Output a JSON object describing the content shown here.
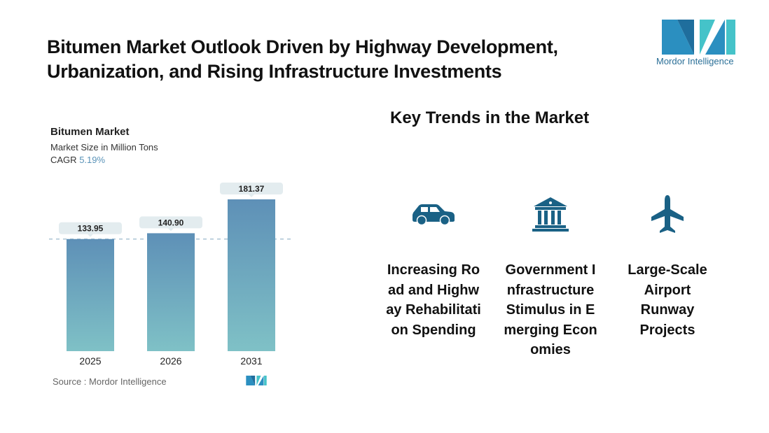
{
  "header": {
    "title_line1": "Bitumen Market Outlook Driven by Highway Development,",
    "title_line2": "Urbanization, and Rising Infrastructure Investments",
    "logo_text": "Mordor Intelligence"
  },
  "chart_data": {
    "type": "bar",
    "title": "Bitumen Market",
    "subtitle": "Market Size in Million Tons",
    "cagr_label": "CAGR",
    "cagr_value": "5.19%",
    "categories": [
      "2025",
      "2026",
      "2031"
    ],
    "values": [
      133.95,
      140.9,
      181.37
    ],
    "value_labels": [
      "133.95",
      "140.90",
      "181.37"
    ],
    "ylim": [
      0,
      181.37
    ],
    "reference_line_value": 133.95,
    "grid": false,
    "colors": {
      "bar_top": "#5e90b7",
      "bar_bottom": "#7fc1c6",
      "label_bg": "#e3ecef",
      "ref_line": "#9bb9cc"
    },
    "source": "Source :  Mordor Intelligence"
  },
  "trends": {
    "heading": "Key Trends in the Market",
    "icon_color": "#1a6185",
    "items": [
      {
        "icon": "car-icon",
        "label": "Increasing Road and Highway Rehabilitation Spending"
      },
      {
        "icon": "government-building-icon",
        "label": "Government Infrastructure Stimulus in Emerging Economies"
      },
      {
        "icon": "airplane-icon",
        "label": "Large-Scale Airport Runway Projects"
      }
    ]
  }
}
